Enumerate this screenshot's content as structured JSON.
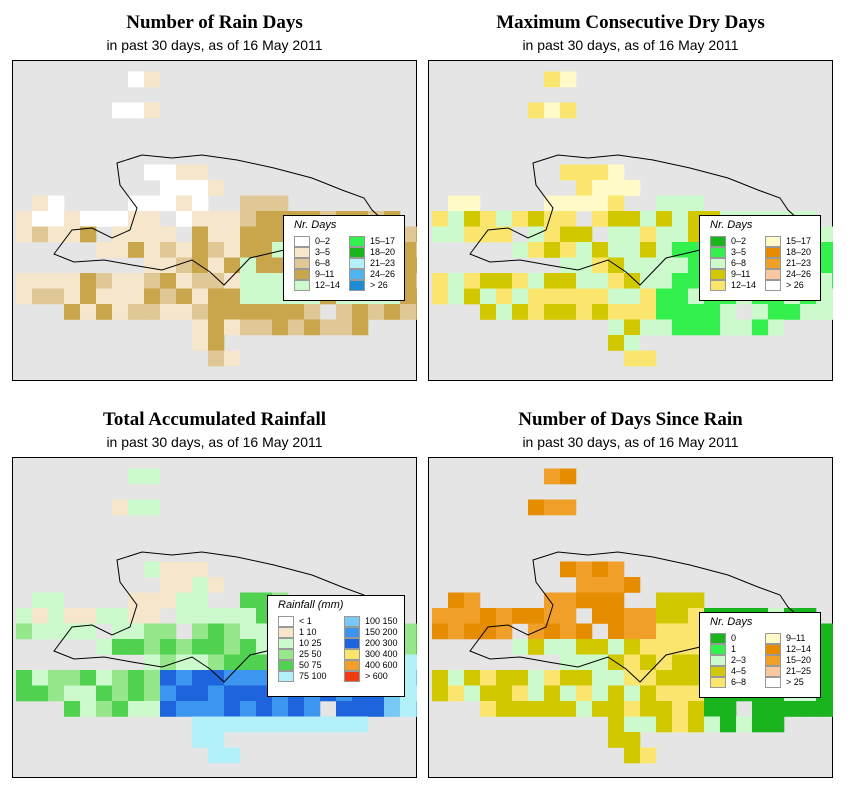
{
  "colors": {
    "map_bg": "#e5e5e5",
    "outline": "#000000"
  },
  "panels": [
    {
      "title": "Number of Rain Days",
      "subtitle": "in past 30 days, as of  16 May 2011",
      "legend": {
        "title": "Nr. Days",
        "items": [
          {
            "label": "0–2",
            "color": "#ffffff"
          },
          {
            "label": "3–5",
            "color": "#f5e6cc"
          },
          {
            "label": "6–8",
            "color": "#e0c796"
          },
          {
            "label": "9–11",
            "color": "#c9a54b"
          },
          {
            "label": "12–14",
            "color": "#ccfacc"
          },
          {
            "label": "15–17",
            "color": "#33f04d"
          },
          {
            "label": "18–20",
            "color": "#19b41e"
          },
          {
            "label": "21–23",
            "color": "#b4f0fa"
          },
          {
            "label": "24–26",
            "color": "#50b4f0"
          },
          {
            "label": "> 26",
            "color": "#1e8cd2"
          }
        ]
      }
    },
    {
      "title": "Maximum Consecutive Dry Days",
      "subtitle": "in past 30 days, as of  16 May 2011",
      "legend": {
        "title": "Nr. Days",
        "items": [
          {
            "label": "0–2",
            "color": "#19b41e"
          },
          {
            "label": "3–5",
            "color": "#33f04d"
          },
          {
            "label": "6–8",
            "color": "#ccfacc"
          },
          {
            "label": "9–11",
            "color": "#d2c800"
          },
          {
            "label": "12–14",
            "color": "#fae66e"
          },
          {
            "label": "15–17",
            "color": "#fffac8"
          },
          {
            "label": "18–20",
            "color": "#e68c00"
          },
          {
            "label": "21–23",
            "color": "#f0a028"
          },
          {
            "label": "24–26",
            "color": "#fac8a0"
          },
          {
            "label": "> 26",
            "color": "#ffffff"
          }
        ]
      }
    },
    {
      "title": "Total Accumulated Rainfall",
      "subtitle": "in past 30 days, as of  16 May 2011",
      "legend": {
        "title": "Rainfall (mm)",
        "items": [
          {
            "label": "< 1",
            "color": "#ffffff"
          },
          {
            "label": "1   10",
            "color": "#f5e6cc"
          },
          {
            "label": "10   25",
            "color": "#ccfacc"
          },
          {
            "label": "25   50",
            "color": "#96e68c"
          },
          {
            "label": "50   75",
            "color": "#50d250"
          },
          {
            "label": "75  100",
            "color": "#b4f0fa"
          },
          {
            "label": "100  150",
            "color": "#78c8f5"
          },
          {
            "label": "150  200",
            "color": "#3c96f0"
          },
          {
            "label": "200  300",
            "color": "#1e64dc"
          },
          {
            "label": "300  400",
            "color": "#fae66e"
          },
          {
            "label": "400  600",
            "color": "#f0a028"
          },
          {
            "label": "> 600",
            "color": "#f03c14"
          }
        ]
      }
    },
    {
      "title": "Number of Days Since Rain",
      "subtitle": "in past 30 days, as of  16 May 2011",
      "legend": {
        "title": "Nr. Days",
        "items": [
          {
            "label": "0",
            "color": "#19b41e"
          },
          {
            "label": "1",
            "color": "#33f04d"
          },
          {
            "label": "2–3",
            "color": "#ccfacc"
          },
          {
            "label": "4–5",
            "color": "#d2c800"
          },
          {
            "label": "6–8",
            "color": "#fae66e"
          },
          {
            "label": "9–11",
            "color": "#fffac8"
          },
          {
            "label": "12–14",
            "color": "#e68c00"
          },
          {
            "label": "15–20",
            "color": "#f0a028"
          },
          {
            "label": "21–25",
            "color": "#fac8a0"
          },
          {
            "label": "> 25",
            "color": "#ffffff"
          }
        ]
      }
    }
  ]
}
